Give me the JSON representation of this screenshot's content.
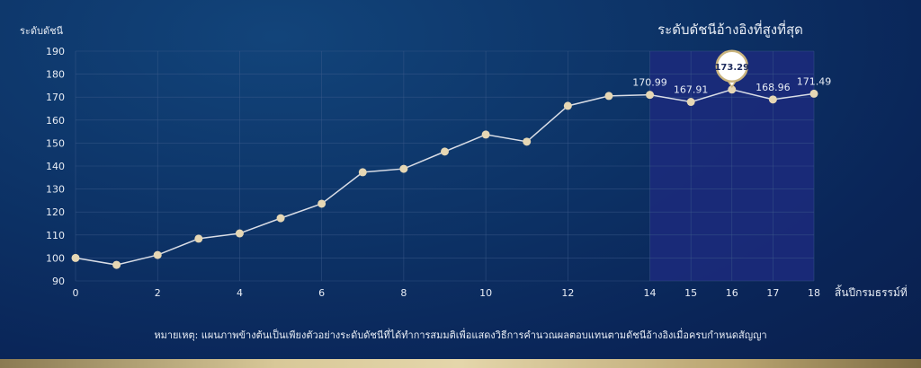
{
  "chart_data": {
    "type": "line",
    "title": "ระดับดัชนีอ้างอิงที่สูงที่สุด",
    "xlabel": "สิ้นปีกรมธรรม์ที่",
    "ylabel": "ระดับดัชนี",
    "x": [
      0,
      1,
      2,
      3,
      4,
      5,
      6,
      7,
      8,
      9,
      10,
      11,
      12,
      13,
      14,
      15,
      16,
      17,
      18
    ],
    "values": [
      100,
      97,
      101.3,
      108.4,
      110.7,
      117.3,
      123.6,
      137.3,
      138.8,
      146.3,
      153.7,
      150.6,
      166.2,
      170.5,
      170.99,
      167.91,
      173.29,
      168.96,
      171.49
    ],
    "data_labels": {
      "14": "170.99",
      "15": "167.91",
      "16": "173.29",
      "17": "168.96",
      "18": "171.49"
    },
    "highlight_label": "173.29",
    "highlight_range": [
      14,
      18
    ],
    "xticks": [
      0,
      2,
      4,
      6,
      8,
      10,
      12,
      14,
      15,
      16,
      17,
      18
    ],
    "yticks": [
      90,
      100,
      110,
      120,
      130,
      140,
      150,
      160,
      170,
      180,
      190
    ],
    "xlim": [
      0,
      18
    ],
    "ylim": [
      90,
      190
    ],
    "grid": true,
    "colors": {
      "line": "#d9dde6",
      "marker": "#e6d7b4",
      "highlight": "#1c2a7c",
      "grid": "#3e5c8c",
      "bottom_band": "#d8c898"
    }
  },
  "note": "หมายเหตุ: แผนภาพข้างต้นเป็นเพียงตัวอย่างระดับดัชนีที่ได้ทำการสมมติเพื่อแสดงวิธีการคำนวณผลตอบแทนตามดัชนีอ้างอิงเมื่อครบกำหนดสัญญา"
}
